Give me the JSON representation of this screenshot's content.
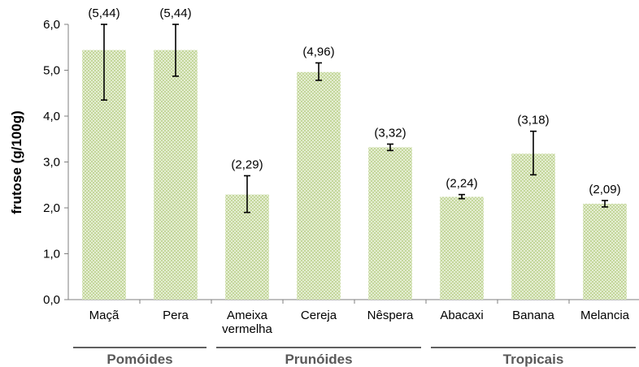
{
  "chart_data": {
    "type": "bar",
    "ylabel": "frutose (g/100g)",
    "xlabel": "",
    "ylim": [
      0,
      6
    ],
    "ytick_step": 1,
    "ytick_labels": [
      "0,0",
      "1,0",
      "2,0",
      "3,0",
      "4,0",
      "5,0",
      "6,0"
    ],
    "grid": false,
    "bar_color": "#9bbb59",
    "categories": [
      {
        "label": "Maçã",
        "value": 5.44,
        "err_low": 4.35,
        "err_high": 6.0,
        "data_label": "(5,44)"
      },
      {
        "label": "Pera",
        "value": 5.44,
        "err_low": 4.87,
        "err_high": 6.0,
        "data_label": "(5,44)"
      },
      {
        "label": "Ameixa vermelha",
        "lines": [
          "Ameixa",
          "vermelha"
        ],
        "value": 2.29,
        "err_low": 1.9,
        "err_high": 2.7,
        "data_label": "(2,29)"
      },
      {
        "label": "Cereja",
        "value": 4.96,
        "err_low": 4.78,
        "err_high": 5.16,
        "data_label": "(4,96)"
      },
      {
        "label": "Nêspera",
        "value": 3.32,
        "err_low": 3.25,
        "err_high": 3.39,
        "data_label": "(3,32)"
      },
      {
        "label": "Abacaxi",
        "value": 2.24,
        "err_low": 2.2,
        "err_high": 2.29,
        "data_label": "(2,24)"
      },
      {
        "label": "Banana",
        "value": 3.18,
        "err_low": 2.72,
        "err_high": 3.67,
        "data_label": "(3,18)"
      },
      {
        "label": "Melancia",
        "value": 2.09,
        "err_low": 2.02,
        "err_high": 2.16,
        "data_label": "(2,09)"
      }
    ],
    "groups": [
      {
        "name": "Pomóides",
        "from": 0,
        "to": 1
      },
      {
        "name": "Prunóides",
        "from": 2,
        "to": 4
      },
      {
        "name": "Tropicais",
        "from": 5,
        "to": 7
      }
    ]
  }
}
